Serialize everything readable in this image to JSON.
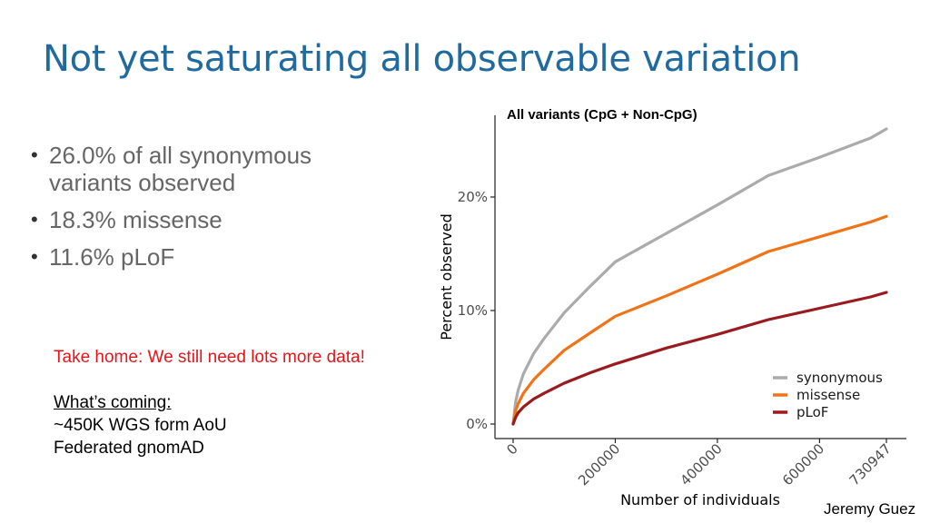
{
  "slide": {
    "title": "Not yet saturating all observable variation",
    "bullets": [
      "26.0% of all synonymous variants observed",
      "18.3% missense",
      "11.6% pLoF"
    ],
    "take_home": "Take home: We still need lots more data!",
    "coming_heading": "What’s coming:",
    "coming_items": [
      "~450K WGS form AoU",
      "Federated gnomAD"
    ],
    "credit": "Jeremy Guez"
  },
  "chart_data": {
    "type": "line",
    "title": "All variants (CpG + Non-CpG)",
    "xlabel": "Number of individuals",
    "ylabel": "Percent observed",
    "x_ticks": [
      0,
      200000,
      400000,
      600000,
      730947
    ],
    "x_tick_labels": [
      "0",
      "200000",
      "400000",
      "600000",
      "730947"
    ],
    "y_ticks": [
      0,
      10,
      20
    ],
    "y_tick_labels": [
      "0%",
      "10%",
      "20%"
    ],
    "xlim": [
      0,
      730947
    ],
    "ylim": [
      0,
      26
    ],
    "grid": false,
    "legend_position": "bottom-right",
    "series": [
      {
        "name": "synonymous",
        "color": "#ababab",
        "x": [
          0,
          5000,
          10000,
          20000,
          40000,
          60000,
          100000,
          150000,
          200000,
          300000,
          400000,
          500000,
          600000,
          700000,
          730947
        ],
        "y": [
          0,
          2.0,
          3.0,
          4.4,
          6.2,
          7.5,
          9.8,
          12.1,
          14.3,
          16.8,
          19.3,
          21.9,
          23.5,
          25.2,
          26.0
        ]
      },
      {
        "name": "missense",
        "color": "#f07318",
        "x": [
          0,
          5000,
          10000,
          20000,
          40000,
          60000,
          100000,
          150000,
          200000,
          300000,
          400000,
          500000,
          600000,
          700000,
          730947
        ],
        "y": [
          0,
          1.2,
          1.8,
          2.7,
          3.9,
          4.8,
          6.5,
          8.0,
          9.5,
          11.3,
          13.2,
          15.2,
          16.5,
          17.8,
          18.3
        ]
      },
      {
        "name": "pLoF",
        "color": "#9a1b1f",
        "x": [
          0,
          5000,
          10000,
          20000,
          40000,
          60000,
          100000,
          150000,
          200000,
          300000,
          400000,
          500000,
          600000,
          700000,
          730947
        ],
        "y": [
          0,
          0.6,
          1.0,
          1.5,
          2.2,
          2.7,
          3.6,
          4.5,
          5.3,
          6.7,
          7.9,
          9.2,
          10.2,
          11.2,
          11.6
        ]
      }
    ]
  }
}
